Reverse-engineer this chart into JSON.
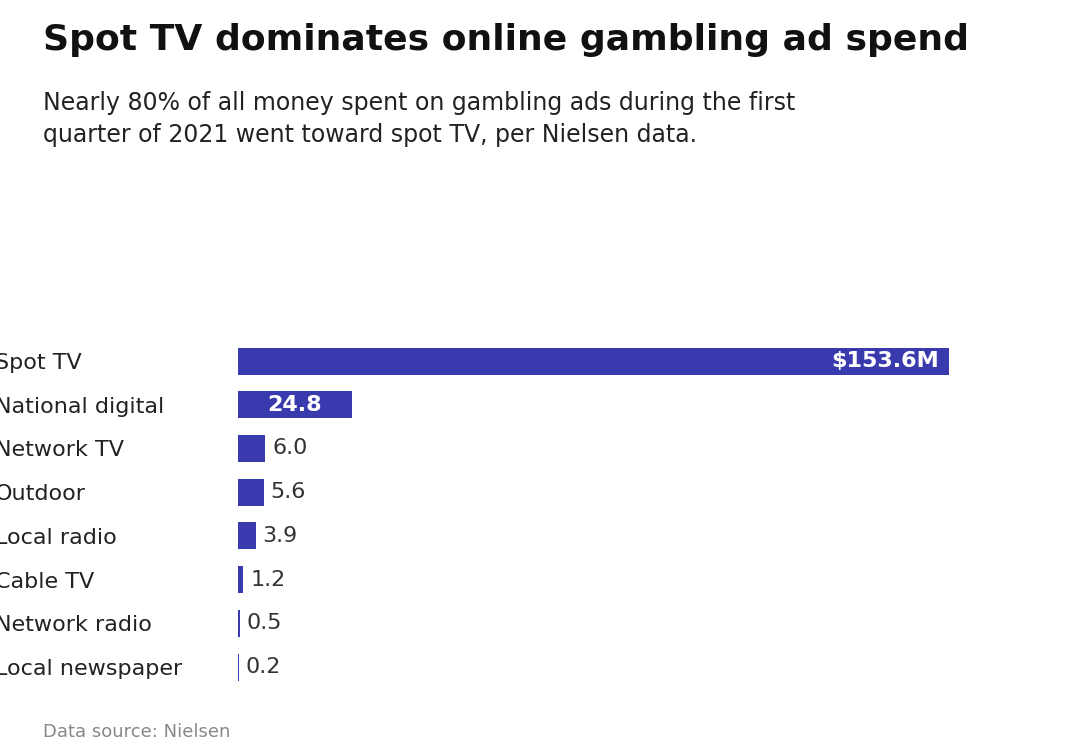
{
  "title": "Spot TV dominates online gambling ad spend",
  "subtitle": "Nearly 80% of all money spent on gambling ads during the first\nquarter of 2021 went toward spot TV, per Nielsen data.",
  "source": "Data source: Nielsen",
  "categories": [
    "Spot TV",
    "National digital",
    "Network TV",
    "Outdoor",
    "Local radio",
    "Cable TV",
    "Network radio",
    "Local newspaper"
  ],
  "values": [
    153.6,
    24.8,
    6.0,
    5.6,
    3.9,
    1.2,
    0.5,
    0.2
  ],
  "labels": [
    "$153.6M",
    "24.8",
    "6.0",
    "5.6",
    "3.9",
    "1.2",
    "0.5",
    "0.2"
  ],
  "bar_color": "#3a3aaf",
  "label_color_inside": "#ffffff",
  "label_color_outside": "#333333",
  "background_color": "#ffffff",
  "title_fontsize": 26,
  "subtitle_fontsize": 17,
  "category_fontsize": 16,
  "label_fontsize": 16,
  "source_fontsize": 13,
  "xlim": [
    0,
    175
  ]
}
